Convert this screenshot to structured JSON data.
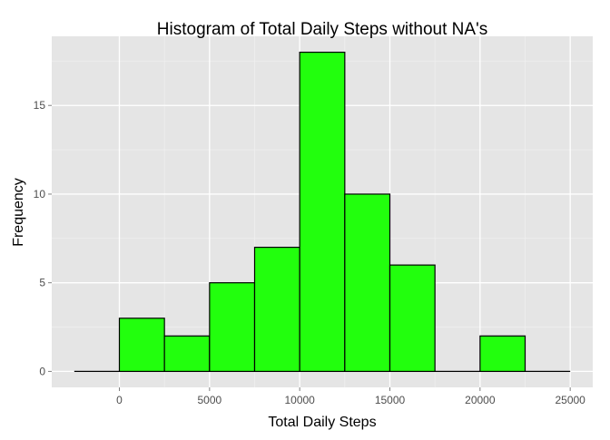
{
  "chart_data": {
    "type": "bar",
    "title": "Histogram of Total Daily Steps without NA's",
    "xlabel": "Total Daily Steps",
    "ylabel": "Frequency",
    "bin_width": 2500,
    "bins": [
      {
        "x0": -2500,
        "x1": 0,
        "value": 0
      },
      {
        "x0": 0,
        "x1": 2500,
        "value": 3
      },
      {
        "x0": 2500,
        "x1": 5000,
        "value": 2
      },
      {
        "x0": 5000,
        "x1": 7500,
        "value": 5
      },
      {
        "x0": 7500,
        "x1": 10000,
        "value": 7
      },
      {
        "x0": 10000,
        "x1": 12500,
        "value": 18
      },
      {
        "x0": 12500,
        "x1": 15000,
        "value": 10
      },
      {
        "x0": 15000,
        "x1": 17500,
        "value": 6
      },
      {
        "x0": 17500,
        "x1": 20000,
        "value": 0
      },
      {
        "x0": 20000,
        "x1": 22500,
        "value": 2
      },
      {
        "x0": 22500,
        "x1": 25000,
        "value": 0
      }
    ],
    "xlim": [
      -3750,
      26250
    ],
    "ylim": [
      -0.9,
      18.9
    ],
    "xticks": [
      0,
      5000,
      10000,
      15000,
      20000,
      25000
    ],
    "xtick_labels": [
      "0",
      "5000",
      "10000",
      "15000",
      "20000",
      "25000"
    ],
    "yticks": [
      0,
      5,
      10,
      15
    ],
    "ytick_labels": [
      "0",
      "5",
      "10",
      "15"
    ],
    "grid": true,
    "bar_fill": "#22FF0D",
    "bar_stroke": "#000000",
    "panel_background": "#E5E5E5",
    "grid_color": "#FFFFFF"
  }
}
